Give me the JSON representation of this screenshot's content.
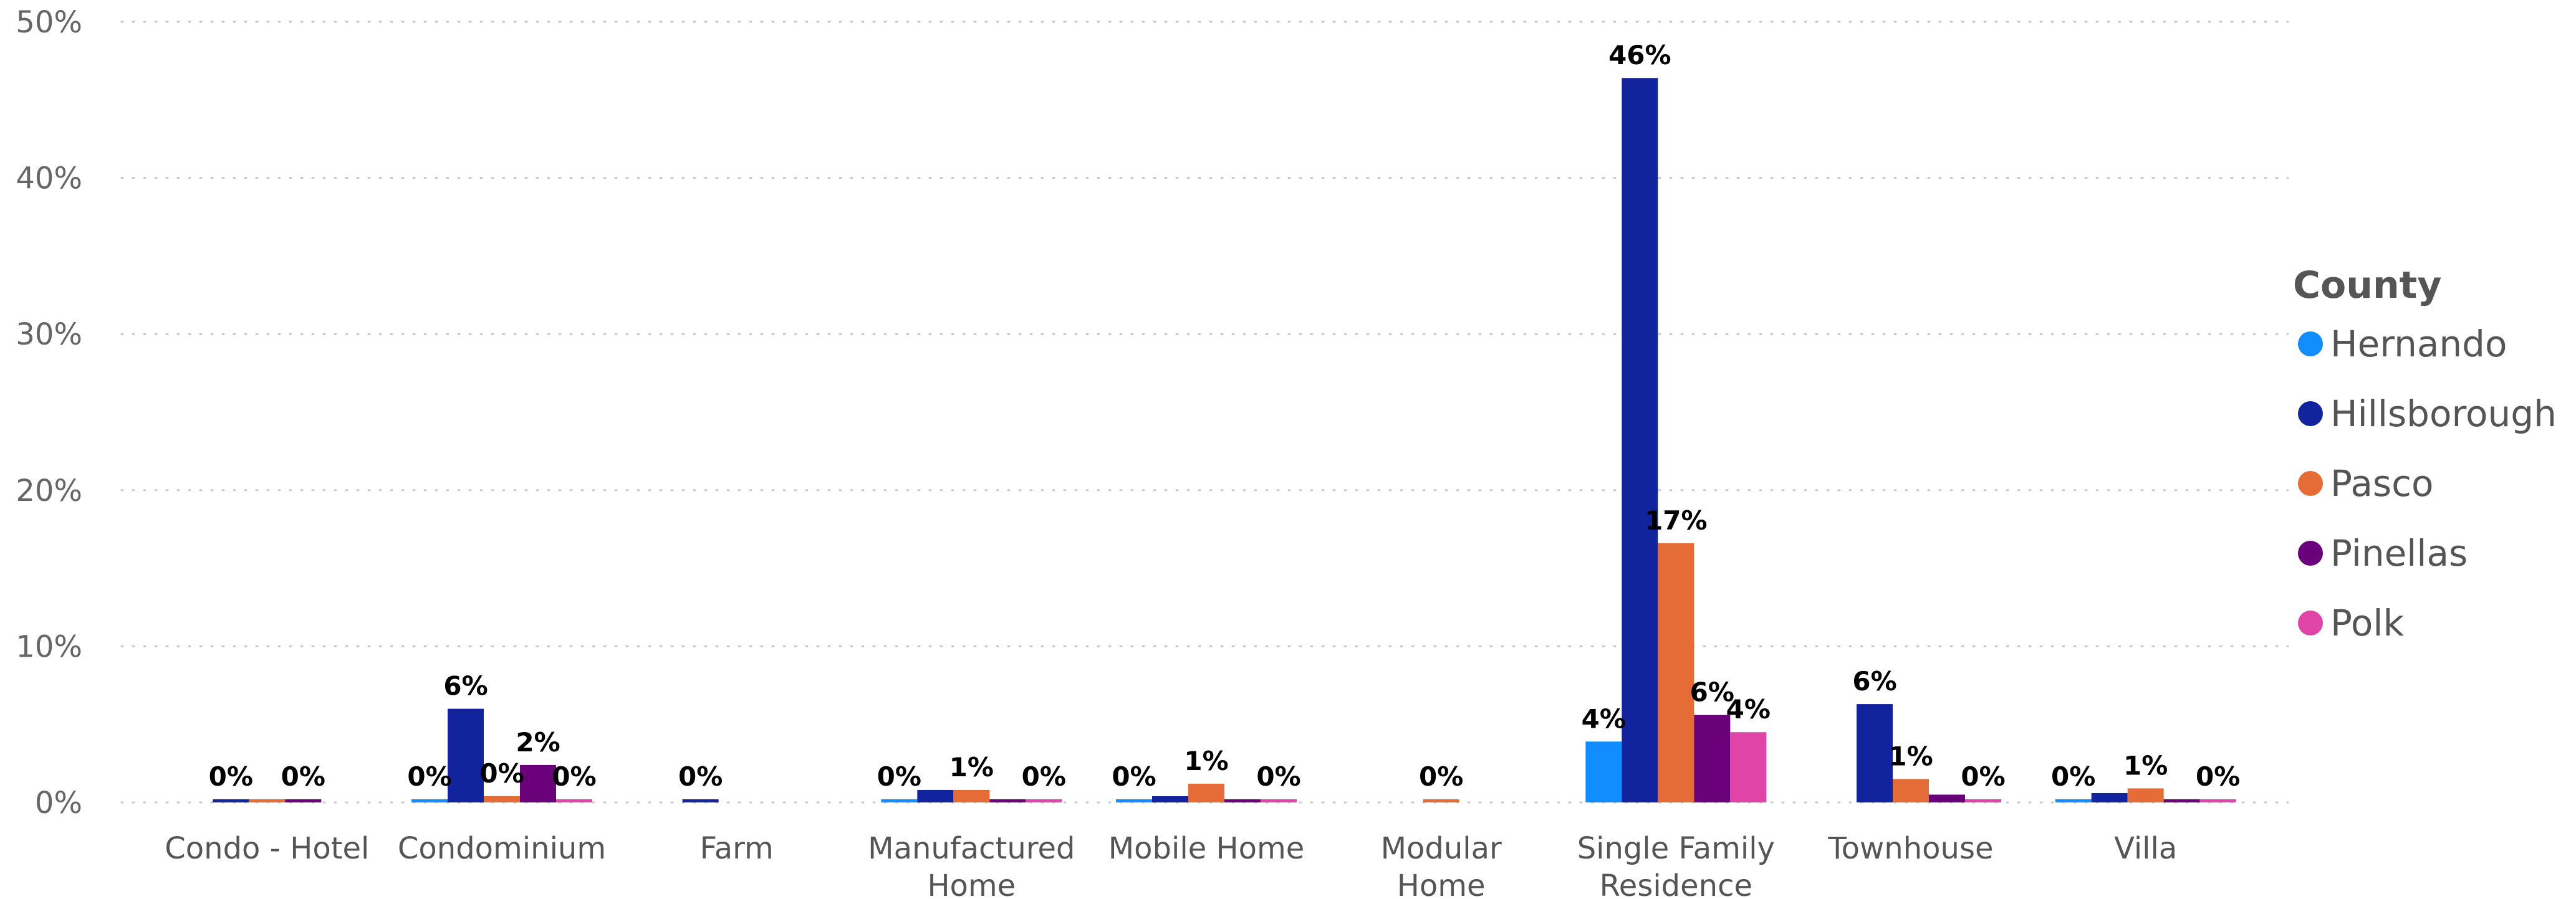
{
  "chart_data": {
    "type": "bar",
    "title": "",
    "xlabel": "",
    "ylabel": "",
    "ylim": [
      0,
      50
    ],
    "yticks": [
      0,
      10,
      20,
      30,
      40,
      50
    ],
    "ytick_labels": [
      "0%",
      "10%",
      "20%",
      "30%",
      "40%",
      "50%"
    ],
    "grid": true,
    "legend_title": "County",
    "legend_position": "right",
    "categories": [
      [
        "Condo - Hotel"
      ],
      [
        "Condominium"
      ],
      [
        "Farm"
      ],
      [
        "Manufactured",
        "Home"
      ],
      [
        "Mobile Home"
      ],
      [
        "Modular",
        "Home"
      ],
      [
        "Single Family",
        "Residence"
      ],
      [
        "Townhouse"
      ],
      [
        "Villa"
      ]
    ],
    "series": [
      {
        "name": "Hernando",
        "color": "#118DFF",
        "values": [
          null,
          0.2,
          null,
          0.2,
          0.2,
          null,
          3.9,
          null,
          0.2
        ],
        "labels": [
          null,
          "0%",
          null,
          "0%",
          "0%",
          null,
          "4%",
          null,
          "0%"
        ]
      },
      {
        "name": "Hillsborough",
        "color": "#12239E",
        "values": [
          0.2,
          6.0,
          0.2,
          0.8,
          0.4,
          null,
          46.4,
          6.3,
          0.6
        ],
        "labels": [
          "0%",
          "6%",
          "0%",
          null,
          null,
          null,
          "46%",
          "6%",
          null
        ]
      },
      {
        "name": "Pasco",
        "color": "#E66C37",
        "values": [
          0.2,
          0.4,
          null,
          0.8,
          1.2,
          0.2,
          16.6,
          1.5,
          0.9
        ],
        "labels": [
          null,
          "0%",
          null,
          "1%",
          "1%",
          "0%",
          "17%",
          "1%",
          "1%"
        ]
      },
      {
        "name": "Pinellas",
        "color": "#6B007B",
        "values": [
          0.2,
          2.4,
          null,
          0.2,
          0.2,
          null,
          5.6,
          0.5,
          0.2
        ],
        "labels": [
          "0%",
          "2%",
          null,
          null,
          null,
          null,
          "6%",
          null,
          null
        ]
      },
      {
        "name": "Polk",
        "color": "#E044A7",
        "values": [
          null,
          0.2,
          null,
          0.2,
          0.2,
          null,
          4.5,
          0.2,
          0.2
        ],
        "labels": [
          null,
          "0%",
          null,
          "0%",
          "0%",
          null,
          "4%",
          "0%",
          "0%"
        ]
      }
    ]
  }
}
